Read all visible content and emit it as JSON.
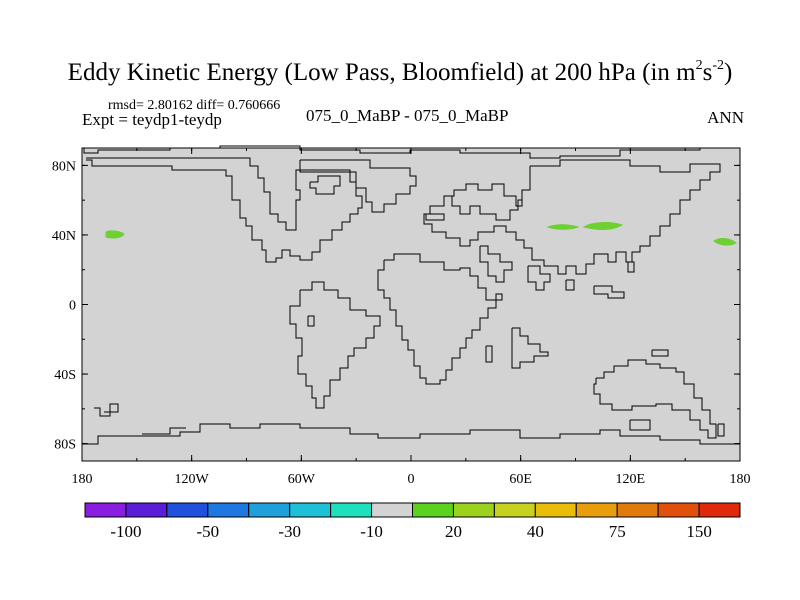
{
  "title": {
    "main": "Eddy Kinetic Energy (Low Pass, Bloomfield) at 200 hPa (in m",
    "sup1": "2",
    "mid": "s",
    "sup2": "-2",
    "end": ")"
  },
  "stats": "rmsd= 2.80162 diff= 0.760666",
  "expt": "Expt = teydp1-teydp",
  "center_label": "075_0_MaBP - 075_0_MaBP",
  "season": "ANN",
  "map": {
    "lat_ticks": [
      {
        "value": 80,
        "label": "80N"
      },
      {
        "value": 40,
        "label": "40N"
      },
      {
        "value": 0,
        "label": "0"
      },
      {
        "value": -40,
        "label": "40S"
      },
      {
        "value": -80,
        "label": "80S"
      }
    ],
    "lon_ticks": [
      {
        "value": -180,
        "label": "180"
      },
      {
        "value": -120,
        "label": "120W"
      },
      {
        "value": -60,
        "label": "60W"
      },
      {
        "value": 0,
        "label": "0"
      },
      {
        "value": 60,
        "label": "60E"
      },
      {
        "value": 120,
        "label": "120E"
      },
      {
        "value": 180,
        "label": "180"
      }
    ],
    "ocean_color": "#d3d3d3",
    "coast_color": "#000000",
    "anomaly_color": "#6cd131"
  },
  "colorbar": {
    "colors": [
      "#8a1ee0",
      "#5a1ed8",
      "#2050dc",
      "#1e78e0",
      "#1ea0dc",
      "#1ec0d8",
      "#1ee0bc",
      "#d3d3d3",
      "#5ad21e",
      "#9cd21e",
      "#c8d21e",
      "#e8be0a",
      "#e89e0a",
      "#e07a0a",
      "#e0500a",
      "#e0280a"
    ],
    "labels": [
      {
        "boundary": 1,
        "text": "-100"
      },
      {
        "boundary": 3,
        "text": "-50"
      },
      {
        "boundary": 5,
        "text": "-30"
      },
      {
        "boundary": 7,
        "text": "-10"
      },
      {
        "boundary": 9,
        "text": "20"
      },
      {
        "boundary": 11,
        "text": "40"
      },
      {
        "boundary": 13,
        "text": "75"
      },
      {
        "boundary": 15,
        "text": "150"
      }
    ]
  }
}
